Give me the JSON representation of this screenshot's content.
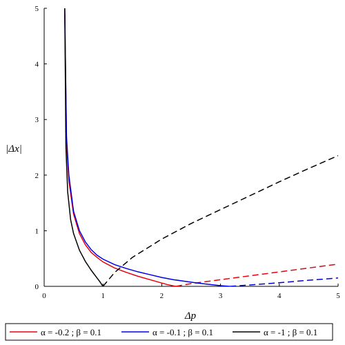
{
  "chart_data": {
    "type": "line",
    "title": "",
    "xlabel": "Δp",
    "ylabel": "|Δx|",
    "xlim": [
      0,
      5
    ],
    "ylim": [
      0,
      5
    ],
    "xticks": [
      "0",
      "1",
      "2",
      "3",
      "4",
      "5"
    ],
    "yticks": [
      "0",
      "1",
      "2",
      "3",
      "4",
      "5"
    ],
    "grid": false,
    "legend_position": "bottom",
    "series": [
      {
        "name": "α = -0.2 ; β = 0.1",
        "color": "#e8000b",
        "solid": {
          "x": [
            0.35,
            0.38,
            0.42,
            0.5,
            0.6,
            0.7,
            0.8,
            0.9,
            1.0,
            1.2,
            1.4,
            1.6,
            1.8,
            2.0,
            2.1,
            2.24
          ],
          "y": [
            5.0,
            2.6,
            1.9,
            1.3,
            0.95,
            0.75,
            0.61,
            0.52,
            0.44,
            0.33,
            0.25,
            0.18,
            0.12,
            0.06,
            0.03,
            0.0
          ]
        },
        "dashed": {
          "x": [
            2.24,
            2.5,
            3.0,
            3.5,
            4.0,
            4.5,
            5.0
          ],
          "y": [
            0.0,
            0.05,
            0.12,
            0.19,
            0.26,
            0.33,
            0.4
          ]
        }
      },
      {
        "name": "α = -0.1 ; β = 0.1",
        "color": "#0000e8",
        "solid": {
          "x": [
            0.35,
            0.38,
            0.42,
            0.5,
            0.6,
            0.7,
            0.8,
            0.9,
            1.0,
            1.2,
            1.4,
            1.6,
            1.8,
            2.0,
            2.2,
            2.4,
            2.6,
            2.8,
            3.0,
            3.16
          ],
          "y": [
            5.0,
            2.7,
            2.0,
            1.35,
            1.0,
            0.8,
            0.66,
            0.56,
            0.49,
            0.39,
            0.32,
            0.26,
            0.21,
            0.16,
            0.12,
            0.09,
            0.06,
            0.035,
            0.012,
            0.0
          ]
        },
        "dashed": {
          "x": [
            3.16,
            3.5,
            4.0,
            4.5,
            5.0
          ],
          "y": [
            0.0,
            0.025,
            0.065,
            0.11,
            0.15
          ]
        }
      },
      {
        "name": "α = -1 ; β = 0.1",
        "color": "#000000",
        "solid": {
          "x": [
            0.35,
            0.37,
            0.4,
            0.45,
            0.5,
            0.6,
            0.7,
            0.8,
            0.9,
            0.95,
            1.0
          ],
          "y": [
            5.0,
            2.5,
            1.7,
            1.2,
            0.95,
            0.65,
            0.45,
            0.29,
            0.15,
            0.08,
            0.0
          ]
        },
        "dashed": {
          "x": [
            1.0,
            1.2,
            1.5,
            2.0,
            2.5,
            3.0,
            3.5,
            4.0,
            4.5,
            5.0
          ],
          "y": [
            0.0,
            0.25,
            0.52,
            0.85,
            1.13,
            1.38,
            1.63,
            1.88,
            2.12,
            2.35
          ]
        }
      }
    ]
  }
}
